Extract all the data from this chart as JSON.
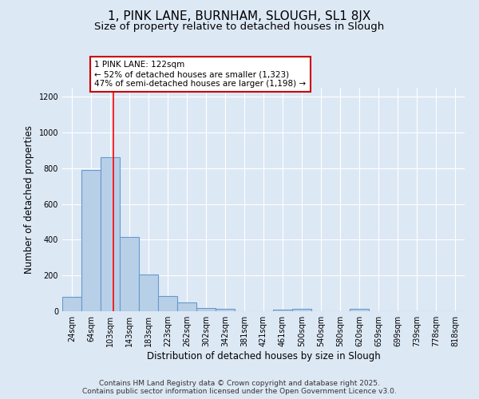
{
  "title": "1, PINK LANE, BURNHAM, SLOUGH, SL1 8JX",
  "subtitle": "Size of property relative to detached houses in Slough",
  "xlabel": "Distribution of detached houses by size in Slough",
  "ylabel": "Number of detached properties",
  "categories": [
    "24sqm",
    "64sqm",
    "103sqm",
    "143sqm",
    "183sqm",
    "223sqm",
    "262sqm",
    "302sqm",
    "342sqm",
    "381sqm",
    "421sqm",
    "461sqm",
    "500sqm",
    "540sqm",
    "580sqm",
    "620sqm",
    "659sqm",
    "699sqm",
    "739sqm",
    "778sqm",
    "818sqm"
  ],
  "values": [
    80,
    790,
    860,
    415,
    205,
    85,
    50,
    20,
    15,
    0,
    0,
    10,
    15,
    0,
    0,
    15,
    0,
    0,
    0,
    0,
    0
  ],
  "bar_color": "#b8cfe8",
  "bar_edge_color": "#6699cc",
  "red_line_x": 2.18,
  "annotation_text": "1 PINK LANE: 122sqm\n← 52% of detached houses are smaller (1,323)\n47% of semi-detached houses are larger (1,198) →",
  "annotation_box_color": "#ffffff",
  "annotation_box_edge": "#cc0000",
  "ylim": [
    0,
    1250
  ],
  "yticks": [
    0,
    200,
    400,
    600,
    800,
    1000,
    1200
  ],
  "background_color": "#dde8f5",
  "footer": "Contains HM Land Registry data © Crown copyright and database right 2025.\nContains public sector information licensed under the Open Government Licence v3.0.",
  "title_fontsize": 11,
  "subtitle_fontsize": 9.5,
  "axis_label_fontsize": 8.5,
  "tick_fontsize": 7,
  "annotation_fontsize": 7.5,
  "footer_fontsize": 6.5
}
